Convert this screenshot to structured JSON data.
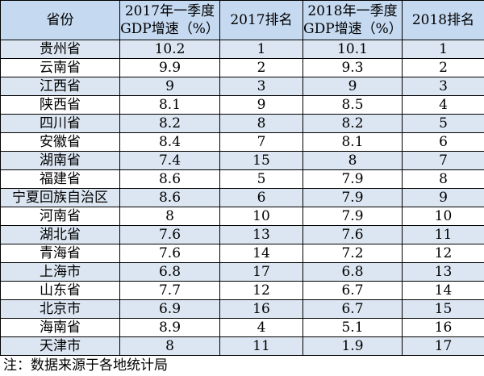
{
  "table": {
    "header": [
      [
        "省份"
      ],
      [
        "2017年一季度",
        "GDP增速（%）"
      ],
      [
        "2017排名"
      ],
      [
        "2018年一季度",
        "GDP增速（%）"
      ],
      [
        "2018排名"
      ]
    ],
    "rows": [
      [
        "贵州省",
        10.2,
        1,
        10.1,
        1
      ],
      [
        "云南省",
        9.9,
        2,
        9.3,
        2
      ],
      [
        "江西省",
        9,
        3,
        9,
        3
      ],
      [
        "陕西省",
        8.1,
        9,
        8.5,
        4
      ],
      [
        "四川省",
        8.2,
        8,
        8.2,
        5
      ],
      [
        "安徽省",
        8.4,
        7,
        8.1,
        6
      ],
      [
        "湖南省",
        7.4,
        15,
        8,
        7
      ],
      [
        "福建省",
        8.6,
        5,
        7.9,
        8
      ],
      [
        "宁夏回族自治区",
        8.6,
        6,
        7.9,
        9
      ],
      [
        "河南省",
        8,
        10,
        7.9,
        10
      ],
      [
        "湖北省",
        7.6,
        13,
        7.6,
        11
      ],
      [
        "青海省",
        7.6,
        14,
        7.2,
        12
      ],
      [
        "上海市",
        6.8,
        17,
        6.8,
        13
      ],
      [
        "山东省",
        7.7,
        12,
        6.7,
        14
      ],
      [
        "北京市",
        6.9,
        16,
        6.7,
        15
      ],
      [
        "海南省",
        8.9,
        4,
        5.1,
        16
      ],
      [
        "天津市",
        8,
        11,
        1.9,
        17
      ]
    ]
  },
  "note": "注：数据来源于各地统计局"
}
